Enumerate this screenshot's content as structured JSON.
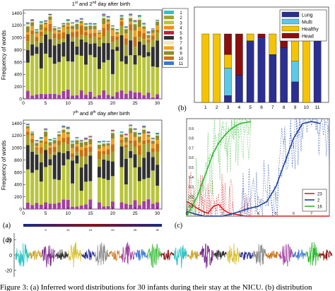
{
  "figure": {
    "caption_visible": "Figure 3: (a) Inferred word distributions for 30 infants during their stay at the NICU. (b) distribution",
    "panel_labels": {
      "a": "(a)",
      "b": "(b)",
      "c": "(c)",
      "d": "(d)"
    }
  },
  "colors": {
    "topics": [
      "#2fc4c4",
      "#a0a02c",
      "#b8c43a",
      "#f08a1a",
      "#c0203a",
      "#303030",
      "#f0e8b0",
      "#f2a020",
      "#8a8a30",
      "#c86f10",
      "#3878d8"
    ],
    "purple": "#a040a0",
    "lung": "#2b2f8f",
    "multi": "#5ec8e8",
    "healthy": "#f5c400",
    "head": "#8a1010",
    "line23": "#d82020",
    "line2": "#1a3fa0",
    "line16": "#2db82d"
  },
  "chart_data": [
    {
      "type": "bar",
      "panel": "a-top",
      "title_parts": [
        "1",
        "st",
        " and 2",
        "nd",
        " day after birth"
      ],
      "ylabel": "Frequency of words",
      "ylim": [
        0,
        1450
      ],
      "yticks": [
        "0",
        "200",
        "400",
        "600",
        "800",
        "1000",
        "1200",
        "1400"
      ],
      "xticks": [
        "0",
        "5",
        "10",
        "15",
        "20",
        "25",
        "30"
      ],
      "xlim": [
        0,
        31
      ],
      "legend": [
        "1",
        "2",
        "3",
        "4",
        "5",
        "6",
        "7",
        "8",
        "9",
        "10",
        "11"
      ],
      "stacked": true,
      "missing_infants": [],
      "profile_bottom": [
        [
          1,
          100
        ],
        [
          2,
          60
        ],
        [
          3,
          70
        ],
        [
          4,
          60
        ],
        [
          5,
          50
        ],
        [
          6,
          70
        ],
        [
          7,
          60
        ],
        [
          8,
          80
        ],
        [
          9,
          60
        ],
        [
          10,
          70
        ],
        [
          11,
          50
        ],
        [
          12,
          40
        ],
        [
          13,
          60
        ],
        [
          14,
          50
        ],
        [
          15,
          60
        ],
        [
          16,
          70
        ],
        [
          17,
          50
        ],
        [
          18,
          60
        ],
        [
          19,
          50
        ],
        [
          20,
          60
        ],
        [
          21,
          70
        ],
        [
          22,
          50
        ],
        [
          23,
          60
        ],
        [
          24,
          60
        ],
        [
          25,
          50
        ],
        [
          26,
          60
        ],
        [
          27,
          60
        ],
        [
          28,
          70
        ],
        [
          29,
          50
        ],
        [
          30,
          160
        ]
      ]
    },
    {
      "type": "bar",
      "panel": "a-bottom",
      "title_parts": [
        "7",
        "th",
        " and 8",
        "th",
        " day after birth"
      ],
      "ylabel": "Frequency of words",
      "ylim": [
        0,
        1450
      ],
      "yticks": [
        "0",
        "200",
        "400",
        "600",
        "800",
        "1000",
        "1200",
        "1400"
      ],
      "xticks": [
        "0",
        "5",
        "10",
        "15",
        "20",
        "25",
        "30"
      ],
      "xlim": [
        0,
        31
      ],
      "stacked": true,
      "missing_infants": [
        16,
        21
      ]
    },
    {
      "type": "bar",
      "panel": "b",
      "categories": [
        "1",
        "2",
        "3",
        "4",
        "5",
        "6",
        "7",
        "8",
        "9",
        "10",
        "11"
      ],
      "stacked": true,
      "ylim": [
        0,
        1
      ],
      "legend": [
        "Lung",
        "Multi",
        "Healthy",
        "Head"
      ],
      "series": [
        {
          "name": "Lung",
          "values": [
            0.0,
            0.0,
            0.1,
            0.4,
            0.9,
            0.95,
            0.7,
            0.8,
            0.3,
            0.0,
            0.95
          ]
        },
        {
          "name": "Multi",
          "values": [
            0.0,
            0.0,
            0.4,
            0.0,
            0.0,
            0.0,
            0.0,
            0.0,
            0.3,
            0.0,
            0.0
          ]
        },
        {
          "name": "Healthy",
          "values": [
            1.0,
            1.0,
            0.2,
            0.0,
            0.1,
            0.0,
            0.3,
            0.0,
            0.3,
            1.0,
            0.0
          ]
        },
        {
          "name": "Head",
          "values": [
            0.0,
            0.0,
            0.3,
            0.6,
            0.0,
            0.05,
            0.0,
            0.2,
            0.1,
            0.0,
            0.05
          ]
        }
      ]
    },
    {
      "type": "line",
      "panel": "c",
      "xlim": [
        0,
        8
      ],
      "ylim": [
        0,
        1
      ],
      "yticks": [
        "0.9",
        "0.8",
        "0.7",
        "0.6",
        "0.5",
        "0.4",
        "0.3",
        "0.2",
        "0.1"
      ],
      "xticks": [
        "0",
        "1",
        "2",
        "3",
        "4",
        "5",
        "6",
        "7"
      ],
      "legend": [
        "23",
        "2",
        "16"
      ],
      "series": [
        {
          "name": "23",
          "x": [
            0,
            0.3,
            0.6,
            0.9,
            1.2,
            1.5,
            1.8,
            2.1,
            2.4,
            2.7,
            3.0,
            3.3,
            8
          ],
          "y": [
            0.15,
            0.12,
            0.08,
            0.05,
            0.03,
            0.1,
            0.12,
            0.06,
            0.03,
            0.02,
            0.01,
            0.0,
            0.0
          ]
        },
        {
          "name": "2",
          "x": [
            0,
            0.5,
            1.0,
            1.5,
            2.0,
            2.5,
            3.0,
            3.5,
            4.0,
            4.5,
            5.0,
            5.5,
            6.0,
            6.5,
            7.0,
            7.5
          ],
          "y": [
            0.05,
            0.02,
            0.0,
            0.0,
            0.0,
            0.02,
            0.05,
            0.08,
            0.1,
            0.15,
            0.3,
            0.55,
            0.8,
            0.95,
            0.97,
            0.95
          ]
        },
        {
          "name": "16",
          "x": [
            0,
            0.3,
            0.6,
            0.9,
            1.2,
            1.5,
            1.8,
            2.1,
            2.4,
            2.7,
            3.0,
            3.3,
            3.6
          ],
          "y": [
            0.0,
            0.1,
            0.2,
            0.35,
            0.5,
            0.65,
            0.75,
            0.82,
            0.88,
            0.92,
            0.95,
            0.96,
            0.97
          ]
        }
      ]
    },
    {
      "type": "line",
      "panel": "d",
      "yticks": [
        "20",
        "0",
        "-20"
      ],
      "ylim": [
        -28,
        28
      ],
      "bar_ticks": [
        "5",
        "10",
        "15",
        "20",
        "25",
        "30"
      ],
      "segments": 24
    }
  ]
}
